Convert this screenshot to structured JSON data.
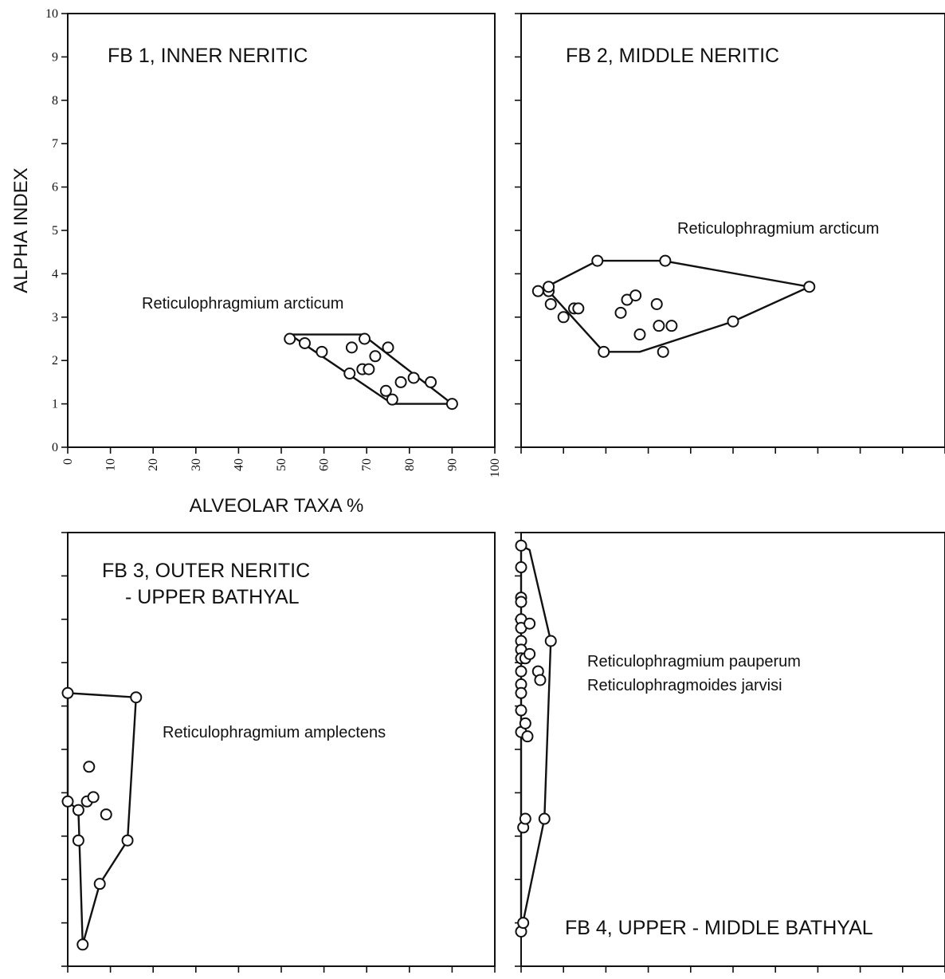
{
  "chart_data": [
    {
      "type": "scatter",
      "panel": "FB1",
      "title": "FB 1,  INNER NERITIC",
      "annotations": [
        "Reticulophragmium arcticum"
      ],
      "xlabel": "ALVEOLAR TAXA %",
      "ylabel": "ALPHA INDEX",
      "xlim": [
        0,
        100
      ],
      "ylim": [
        0,
        10
      ],
      "xticks": [
        "0",
        "10",
        "20",
        "30",
        "40",
        "50",
        "60",
        "70",
        "80",
        "90",
        "100"
      ],
      "yticks": [
        "0",
        "1",
        "2",
        "3",
        "4",
        "5",
        "6",
        "7",
        "8",
        "9",
        "10"
      ],
      "x": [
        52,
        55.5,
        59.5,
        66,
        66.5,
        69,
        69.5,
        70.5,
        72,
        74.5,
        75,
        76,
        78,
        81,
        85,
        90
      ],
      "y": [
        2.5,
        2.4,
        2.2,
        1.7,
        2.3,
        1.8,
        2.5,
        1.8,
        2.1,
        1.3,
        2.3,
        1.1,
        1.5,
        1.6,
        1.5,
        1.0
      ],
      "hull": [
        [
          52,
          2.6
        ],
        [
          69,
          2.6
        ],
        [
          90,
          1.0
        ],
        [
          76,
          1.0
        ]
      ]
    },
    {
      "type": "scatter",
      "panel": "FB2",
      "title": "FB 2,  MIDDLE NERITIC",
      "annotations": [
        "Reticulophragmium arcticum"
      ],
      "xlim": [
        0,
        100
      ],
      "ylim": [
        0,
        10
      ],
      "x": [
        4,
        6.5,
        6.5,
        7,
        10,
        12.5,
        13.5,
        18,
        19.5,
        23.5,
        25,
        27,
        28,
        32,
        32.5,
        34,
        33.5,
        35.5,
        50,
        68
      ],
      "y": [
        3.6,
        3.6,
        3.7,
        3.3,
        3.0,
        3.2,
        3.2,
        4.3,
        2.2,
        3.1,
        3.4,
        3.5,
        2.6,
        3.3,
        2.8,
        4.3,
        2.2,
        2.8,
        2.9,
        3.7
      ],
      "hull": [
        [
          4,
          3.6
        ],
        [
          18,
          4.3
        ],
        [
          33.5,
          4.3
        ],
        [
          68,
          3.7
        ],
        [
          50,
          2.9
        ],
        [
          28,
          2.2
        ],
        [
          19.5,
          2.2
        ],
        [
          6.5,
          3.6
        ],
        [
          6.5,
          3.7
        ]
      ]
    },
    {
      "type": "scatter",
      "panel": "FB3",
      "title": "FB 3,  OUTER NERITIC\n - UPPER BATHYAL",
      "annotations": [
        "Reticulophragmium amplectens"
      ],
      "xlim": [
        0,
        100
      ],
      "ylim": [
        0,
        10
      ],
      "x": [
        0,
        0,
        2.5,
        2.5,
        3.5,
        4.5,
        5,
        6,
        7.5,
        9,
        14,
        16
      ],
      "y": [
        3.8,
        6.3,
        3.6,
        2.9,
        0.5,
        3.8,
        4.6,
        3.9,
        1.9,
        3.5,
        2.9,
        6.2
      ],
      "hull": [
        [
          0,
          6.3
        ],
        [
          16,
          6.2
        ],
        [
          14,
          2.9
        ],
        [
          7.5,
          1.9
        ],
        [
          3.5,
          0.5
        ],
        [
          2.5,
          3.6
        ],
        [
          0,
          3.8
        ]
      ]
    },
    {
      "type": "scatter",
      "panel": "FB4",
      "title": "FB 4,  UPPER - MIDDLE BATHYAL",
      "annotations": [
        "Reticulophragmium pauperum",
        "Reticulophragmoides  jarvisi"
      ],
      "xlim": [
        0,
        100
      ],
      "ylim": [
        0,
        10
      ],
      "x": [
        0,
        0,
        0,
        0,
        0,
        0,
        0,
        0,
        0,
        0,
        0,
        0,
        0,
        0,
        0,
        0.5,
        0.5,
        1,
        1,
        1,
        1.5,
        2,
        2,
        4,
        4.5,
        5.5,
        7
      ],
      "y": [
        9.7,
        9.2,
        8.5,
        8.4,
        8.0,
        7.8,
        7.5,
        7.3,
        7.1,
        6.8,
        6.5,
        6.3,
        5.9,
        5.4,
        0.8,
        1.0,
        3.2,
        7.1,
        5.6,
        3.4,
        5.3,
        7.9,
        7.2,
        6.8,
        6.6,
        3.4,
        7.5
      ],
      "hull": [
        [
          0,
          9.7
        ],
        [
          2,
          9.6
        ],
        [
          7,
          7.5
        ],
        [
          5.5,
          3.4
        ],
        [
          0,
          0.8
        ]
      ]
    }
  ]
}
